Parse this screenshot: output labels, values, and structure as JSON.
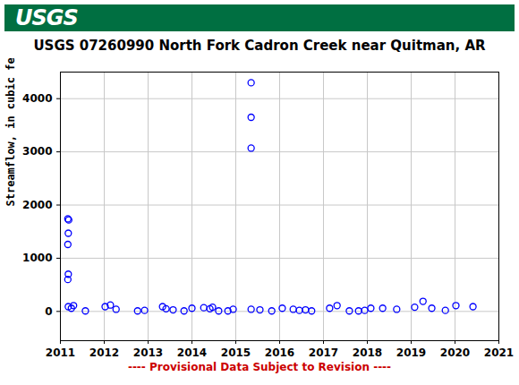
{
  "chart_data": {
    "type": "scatter",
    "logo_text": "USGS",
    "title": "USGS 07260990 North Fork Cadron Creek near Quitman, AR",
    "y_label": "Streamflow, in cubic feet per second",
    "footer": "---- Provisional Data Subject to Revision ----",
    "x": [
      2011.17,
      2011.19,
      2011.18,
      2011.17,
      2011.18,
      2011.17,
      2011.18,
      2011.25,
      2011.3,
      2011.57,
      2012.02,
      2012.14,
      2012.27,
      2012.76,
      2012.92,
      2013.33,
      2013.41,
      2013.57,
      2013.82,
      2014.0,
      2014.27,
      2014.41,
      2014.47,
      2014.61,
      2014.82,
      2014.94,
      2015.35,
      2015.35,
      2015.35,
      2015.35,
      2015.55,
      2015.82,
      2016.06,
      2016.31,
      2016.45,
      2016.59,
      2016.73,
      2017.14,
      2017.31,
      2017.59,
      2017.8,
      2017.94,
      2018.08,
      2018.35,
      2018.67,
      2019.08,
      2019.27,
      2019.47,
      2019.78,
      2020.02,
      2020.41
    ],
    "values": [
      1740,
      1720,
      1470,
      1260,
      700,
      600,
      90,
      60,
      110,
      10,
      90,
      120,
      40,
      10,
      20,
      90,
      50,
      30,
      10,
      60,
      70,
      50,
      80,
      10,
      10,
      40,
      4300,
      3650,
      3070,
      40,
      30,
      10,
      60,
      40,
      20,
      30,
      10,
      60,
      110,
      10,
      10,
      20,
      60,
      60,
      40,
      80,
      190,
      60,
      20,
      110,
      90
    ],
    "color": "#0000ff",
    "marker": "open_circle",
    "xlim": [
      2011,
      2021
    ],
    "xticks": [
      2011,
      2012,
      2013,
      2014,
      2015,
      2016,
      2017,
      2018,
      2019,
      2020,
      2021
    ],
    "ylim": [
      -550,
      4500
    ],
    "yticks": [
      0,
      1000,
      2000,
      3000,
      4000
    ],
    "grid": true
  }
}
